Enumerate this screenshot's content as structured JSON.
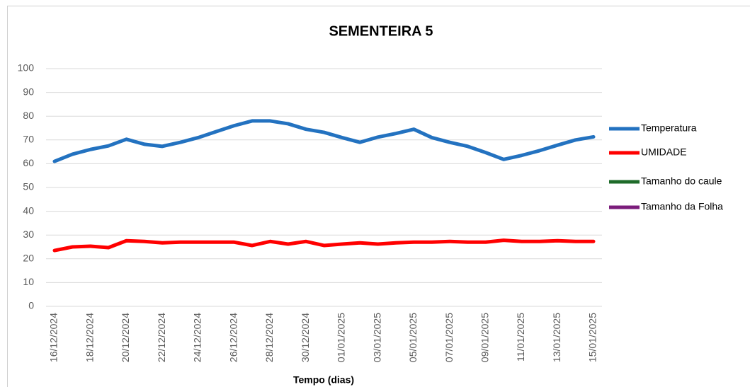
{
  "chart_data": {
    "type": "line",
    "title": "SEMENTEIRA 5",
    "x_label": "Tempo (dias)",
    "categories": [
      "16/12/2024",
      null,
      "18/12/2024",
      null,
      "20/12/2024",
      null,
      "22/12/2024",
      null,
      "24/12/2024",
      null,
      "26/12/2024",
      null,
      "28/12/2024",
      null,
      "30/12/2024",
      null,
      "01/01/2025",
      null,
      "03/01/2025",
      null,
      "05/01/2025",
      null,
      "07/01/2025",
      null,
      "09/01/2025",
      null,
      "11/01/2025",
      null,
      "13/01/2025",
      null,
      "15/01/2025"
    ],
    "series": [
      {
        "name": "Temperatura",
        "color": "#2372c0",
        "values": [
          61,
          64,
          66,
          67.5,
          70.3,
          68.2,
          67.3,
          69,
          71,
          73.5,
          76,
          78,
          78,
          76.8,
          74.5,
          73.2,
          71,
          69,
          71.2,
          72.7,
          74.5,
          71,
          69,
          67.3,
          64.7,
          61.8,
          63.5,
          65.5,
          67.8,
          70,
          71.3
        ]
      },
      {
        "name": "UMIDADE",
        "color": "#ff0000",
        "values": [
          23.5,
          25,
          25.3,
          24.7,
          27.6,
          27.3,
          26.7,
          27,
          27,
          27,
          27,
          25.6,
          27.3,
          26.2,
          27.3,
          25.6,
          26.2,
          26.7,
          26.2,
          26.7,
          27,
          27,
          27.3,
          27,
          27,
          27.8,
          27.3,
          27.3,
          27.6,
          27.3,
          27.3
        ]
      },
      {
        "name": "Tamanho do caule",
        "color": "#1e6b2a",
        "values": [
          null,
          null,
          null,
          null,
          null,
          null,
          null,
          null,
          null,
          null,
          null,
          null,
          null,
          null,
          null,
          null,
          null,
          null,
          null,
          null,
          null,
          null,
          null,
          null,
          null,
          null,
          null,
          null,
          null,
          null,
          null
        ]
      },
      {
        "name": "Tamanho da Folha",
        "color": "#7b1c7b",
        "values": [
          null,
          null,
          null,
          null,
          null,
          null,
          null,
          null,
          null,
          null,
          null,
          null,
          null,
          null,
          null,
          null,
          null,
          null,
          null,
          null,
          null,
          null,
          null,
          null,
          null,
          null,
          null,
          null,
          null,
          null,
          null
        ]
      }
    ],
    "ylim": [
      0,
      100
    ],
    "yticks": [
      0,
      10,
      20,
      30,
      40,
      50,
      60,
      70,
      80,
      90,
      100
    ],
    "grid": true,
    "legend": "right"
  }
}
